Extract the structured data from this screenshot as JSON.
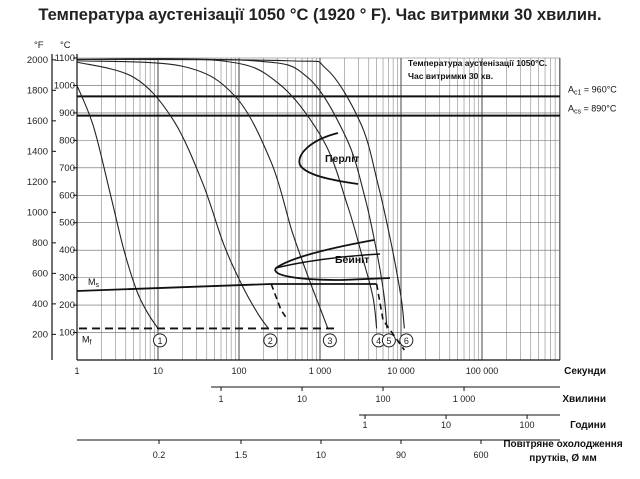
{
  "title": "Температура аустенізації 1050 °С (1920 ° F). Час витримки 30 хвилин.",
  "chart_data": {
    "type": "line",
    "title": "Температура аустенізації 1050 °С (1920 ° F). Час витримки 30 хвилин.",
    "box_note": [
      "Температура аустенізації 1050°С.",
      "Час витримки 30 хв."
    ],
    "y_axes": {
      "fahrenheit": {
        "label": "°F",
        "ticks": [
          200,
          400,
          600,
          800,
          1000,
          1200,
          1400,
          1600,
          1800,
          2000
        ],
        "range": [
          0,
          2000
        ]
      },
      "celsius": {
        "label": "°C",
        "ticks": [
          100,
          200,
          300,
          400,
          500,
          600,
          700,
          800,
          900,
          1000,
          1100
        ],
        "range": [
          0,
          1100
        ]
      }
    },
    "x_axes": [
      {
        "label": "Секунди",
        "ticks": [
          "1",
          "10",
          "100",
          "1 000",
          "10 000",
          "100 000"
        ],
        "values": [
          1,
          10,
          100,
          1000,
          10000,
          100000
        ],
        "scale": "log"
      },
      {
        "label": "Хвилини",
        "ticks": [
          "1",
          "10",
          "100",
          "1 000"
        ],
        "values": [
          1,
          10,
          100,
          1000
        ],
        "scale": "log"
      },
      {
        "label": "Години",
        "ticks": [
          "1",
          "10",
          "100"
        ],
        "values": [
          1,
          10,
          100
        ],
        "scale": "log"
      },
      {
        "label": "Повітряне охолодження прутків, Ø мм",
        "ticks": [
          "0.2",
          "1.5",
          "10",
          "90",
          "600"
        ]
      }
    ],
    "critical_points": [
      {
        "name": "Ac1",
        "label": "= 960°C",
        "value_c": 960
      },
      {
        "name": "Acs",
        "label": "= 890°C",
        "value_c": 890
      }
    ],
    "reference_lines_c": [
      960,
      890
    ],
    "ms": {
      "label": "Ms",
      "value_c": 255
    },
    "mf": {
      "label": "Mf",
      "value_c": 115
    },
    "regions": [
      "Перліт",
      "Бейніт"
    ],
    "cooling_curves": [
      {
        "name": "1",
        "points": [
          [
            1,
            1000
          ],
          [
            1.6,
            850
          ],
          [
            2.6,
            600
          ],
          [
            3.8,
            400
          ],
          [
            5.5,
            250
          ],
          [
            7.5,
            170
          ],
          [
            10,
            115
          ]
        ]
      },
      {
        "name": "2",
        "points": [
          [
            1,
            1085
          ],
          [
            5,
            1030
          ],
          [
            15,
            880
          ],
          [
            35,
            650
          ],
          [
            65,
            420
          ],
          [
            110,
            270
          ],
          [
            170,
            170
          ],
          [
            230,
            115
          ]
        ]
      },
      {
        "name": "3",
        "points": [
          [
            1,
            1090
          ],
          [
            20,
            1070
          ],
          [
            90,
            960
          ],
          [
            250,
            720
          ],
          [
            450,
            470
          ],
          [
            700,
            310
          ],
          [
            1000,
            190
          ],
          [
            1250,
            115
          ]
        ]
      },
      {
        "name": "4",
        "points": [
          [
            1,
            1095
          ],
          [
            60,
            1090
          ],
          [
            300,
            1010
          ],
          [
            1100,
            800
          ],
          [
            2200,
            560
          ],
          [
            3300,
            380
          ],
          [
            4500,
            230
          ],
          [
            5000,
            115
          ]
        ]
      },
      {
        "name": "5",
        "points": [
          [
            1,
            1095
          ],
          [
            150,
            1090
          ],
          [
            700,
            1030
          ],
          [
            2100,
            810
          ],
          [
            3600,
            590
          ],
          [
            5200,
            370
          ],
          [
            6200,
            230
          ],
          [
            6700,
            115
          ]
        ]
      },
      {
        "name": "6",
        "points": [
          [
            1,
            1095
          ],
          [
            400,
            1090
          ],
          [
            1200,
            1060
          ],
          [
            3200,
            860
          ],
          [
            5200,
            640
          ],
          [
            7500,
            430
          ],
          [
            10000,
            230
          ],
          [
            11000,
            115
          ]
        ]
      }
    ],
    "grid": true
  }
}
